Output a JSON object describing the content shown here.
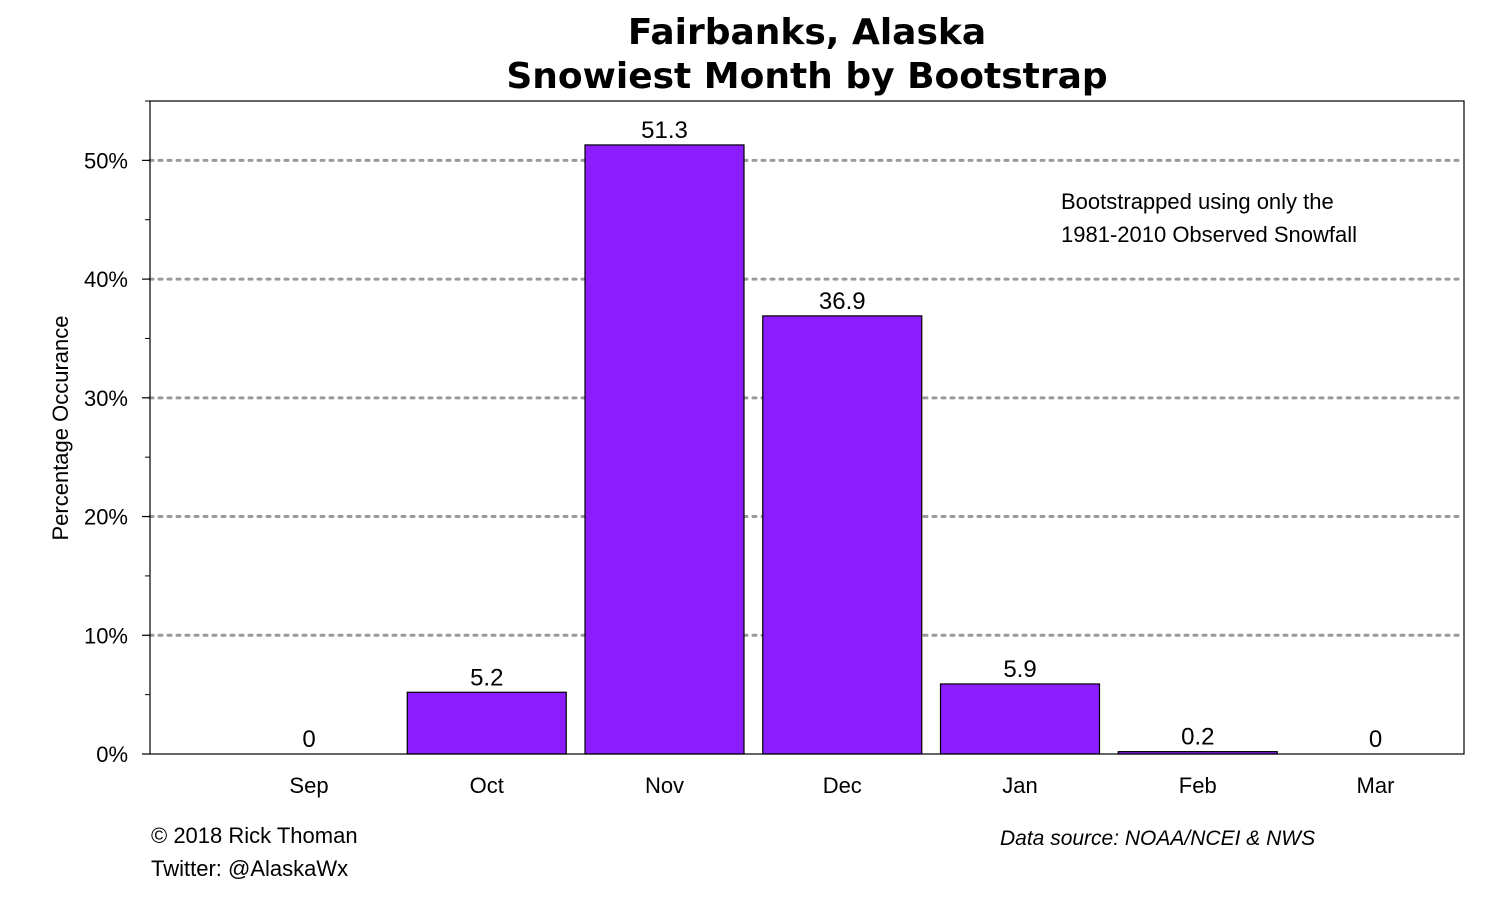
{
  "chart_data": {
    "type": "bar",
    "title_lines": [
      "Fairbanks, Alaska",
      "Snowiest Month by Bootstrap"
    ],
    "xlabel": "",
    "ylabel": "Percentage Occurance",
    "categories": [
      "Sep",
      "Oct",
      "Nov",
      "Dec",
      "Jan",
      "Feb",
      "Mar"
    ],
    "values": [
      0,
      5.2,
      51.3,
      36.9,
      5.9,
      0.2,
      0
    ],
    "data_labels": [
      "0",
      "5.2",
      "51.3",
      "36.9",
      "5.9",
      "0.2",
      "0"
    ],
    "ylim": [
      0,
      55
    ],
    "yticks": [
      0,
      10,
      20,
      30,
      40,
      50
    ],
    "ytick_labels": [
      "0%",
      "10%",
      "20%",
      "30%",
      "40%",
      "50%"
    ],
    "y_minor_ticks": [
      5,
      15,
      25,
      35,
      45,
      55
    ],
    "grid": "horizontal dotted at major ticks",
    "legend": "none",
    "bar_color": "#8b1dff",
    "annotation_lines": [
      "Bootstrapped using only the",
      "1981-2010 Observed Snowfall"
    ]
  },
  "footer": {
    "copyright": "© 2018 Rick Thoman",
    "twitter": "Twitter: @AlaskaWx",
    "source": "Data source: NOAA/NCEI & NWS"
  }
}
